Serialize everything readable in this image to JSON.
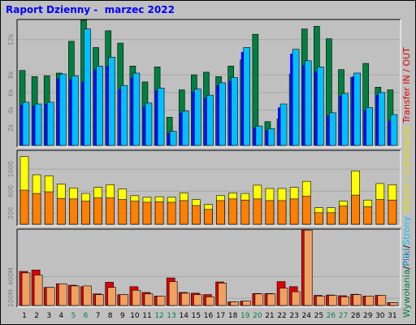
{
  "page_title": "Raport Dzienny -  marzec 2022",
  "colors": {
    "title": "#0000ff",
    "frame_bg": "#c0c0c0",
    "panel_bg": "#c0c0c0",
    "hits": "#008040",
    "files": "#00c0ff",
    "pages": "#0000ff",
    "visits": "#ffff00",
    "sites": "#ff8000",
    "kbin": "#e00000",
    "kbout": "#f0a060",
    "weekday_label": "#000000",
    "weekend_label": "#008040"
  },
  "legend": [
    {
      "text": "Wywołania",
      "color": "#008040"
    },
    {
      "text": "/",
      "color": "#000000"
    },
    {
      "text": "Pliki",
      "color": "#0080c0"
    },
    {
      "text": "/",
      "color": "#000000"
    },
    {
      "text": "Strony",
      "color": "#00c0ff"
    },
    {
      "text": " Wizyty / Lokalizacje",
      "color": "#e0e000"
    },
    {
      "text": " Transfer  IN / OUT",
      "color": "#e00000"
    }
  ],
  "chart_data": {
    "type": "bar",
    "days": [
      "1",
      "2",
      "3",
      "4",
      "5",
      "6",
      "7",
      "8",
      "9",
      "10",
      "11",
      "12",
      "13",
      "14",
      "15",
      "16",
      "17",
      "18",
      "19",
      "20",
      "21",
      "22",
      "23",
      "24",
      "25",
      "26",
      "27",
      "28",
      "29",
      "30",
      "31"
    ],
    "weekend_days": [
      "5",
      "6",
      "12",
      "13",
      "19",
      "20",
      "26",
      "27"
    ],
    "panels": [
      {
        "name": "requests",
        "ymax": 14000,
        "ticks": [
          {
            "v": 2000,
            "label": "2k"
          },
          {
            "v": 4000,
            "label": "4k"
          },
          {
            "v": 6000,
            "label": "6k"
          },
          {
            "v": 8000,
            "label": "8k"
          },
          {
            "v": 12000,
            "label": "12k"
          }
        ],
        "series": [
          {
            "name": "Wywołania",
            "values": [
              8500,
              7800,
              7900,
              8200,
              11800,
              14200,
              11100,
              13000,
              11600,
              9000,
              7200,
              8900,
              3200,
              6300,
              8000,
              8300,
              7800,
              9000,
              9700,
              12600,
              2700,
              3000,
              8100,
              13200,
              13500,
              12100,
              8600,
              7700,
              9300,
              6600,
              6300
            ]
          },
          {
            "name": "Pliki",
            "values": [
              4900,
              4700,
              4900,
              8100,
              7900,
              13200,
              9000,
              10000,
              6800,
              8200,
              4800,
              6500,
              1600,
              3900,
              6400,
              5700,
              7100,
              7700,
              11100,
              2200,
              1900,
              4700,
              10900,
              9600,
              8900,
              3700,
              5900,
              8200,
              4300,
              6000,
              3500
            ]
          },
          {
            "name": "Strony",
            "values": [
              4600,
              4500,
              4700,
              7600,
              7500,
              7200,
              8600,
              9000,
              6400,
              7700,
              4400,
              6200,
              1400,
              3700,
              6100,
              5400,
              6800,
              7300,
              10600,
              2000,
              1700,
              4300,
              10400,
              9100,
              8400,
              3400,
              5600,
              7800,
              4000,
              5700,
              2800
            ]
          }
        ]
      },
      {
        "name": "visits",
        "ymax": 1300,
        "ticks": [
          {
            "v": 200,
            "label": "200"
          },
          {
            "v": 600,
            "label": "600"
          },
          {
            "v": 1000,
            "label": "1000"
          }
        ],
        "series": [
          {
            "name": "Wizyty",
            "values": [
              1230,
              900,
              880,
              730,
              660,
              560,
              670,
              720,
              640,
              520,
              490,
              500,
              490,
              570,
              450,
              360,
              520,
              570,
              560,
              710,
              650,
              650,
              670,
              780,
              300,
              300,
              420,
              970,
              440,
              740,
              720
            ]
          },
          {
            "name": "Lokalizacje",
            "values": [
              620,
              560,
              590,
              470,
              460,
              420,
              480,
              480,
              450,
              420,
              400,
              410,
              400,
              430,
              340,
              270,
              430,
              460,
              440,
              460,
              430,
              430,
              460,
              510,
              210,
              210,
              330,
              530,
              320,
              450,
              440
            ]
          }
        ]
      },
      {
        "name": "transfer",
        "ymax": 1020,
        "ticks": [
          {
            "v": 100,
            "label": "100M"
          },
          {
            "v": 400,
            "label": "400M"
          }
        ],
        "series": [
          {
            "name": "IN",
            "values": [
              470,
              490,
              250,
              300,
              280,
              260,
              160,
              320,
              150,
              260,
              180,
              130,
              380,
              180,
              170,
              150,
              325,
              50,
              60,
              165,
              165,
              330,
              260,
              1040,
              140,
              145,
              135,
              155,
              130,
              140,
              40
            ]
          },
          {
            "name": "OUT",
            "values": [
              450,
              420,
              250,
              300,
              270,
              270,
              150,
              250,
              150,
              210,
              160,
              130,
              330,
              170,
              150,
              120,
              310,
              50,
              60,
              160,
              160,
              240,
              190,
              1040,
              130,
              140,
              120,
              150,
              130,
              140,
              40
            ]
          }
        ]
      }
    ]
  }
}
